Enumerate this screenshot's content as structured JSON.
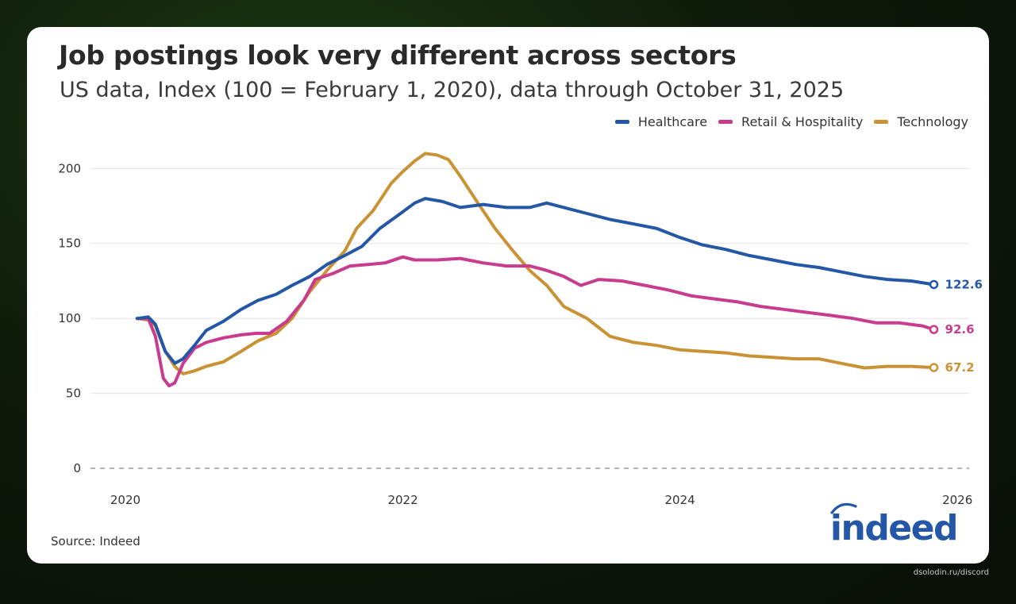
{
  "title": "Job postings look very different across sectors",
  "subtitle": "US data, Index (100 = February 1, 2020), data through October 31, 2025",
  "source": "Source: Indeed",
  "logo_text": "indeed",
  "watermark": "dsolodin.ru/discord",
  "colors": {
    "healthcare": "#2557a7",
    "retail": "#c93b8d",
    "technology": "#c99235",
    "grid": "#e3e3e3",
    "zero_line": "#888888",
    "background": "#ffffff"
  },
  "chart_data": {
    "type": "line",
    "title": "Job postings look very different across sectors",
    "subtitle": "US data, Index (100 = February 1, 2020), data through October 31, 2025",
    "xlabel": "",
    "ylabel": "",
    "x_ticks": [
      "2020",
      "2022",
      "2024",
      "2026"
    ],
    "y_ticks": [
      0,
      50,
      100,
      150,
      200
    ],
    "xlim": [
      "2019-10-01",
      "2026-02-01"
    ],
    "ylim": [
      0,
      215
    ],
    "grid": true,
    "legend_position": "top-right",
    "series": [
      {
        "name": "Healthcare",
        "color": "#2557a7",
        "end_label": "122.6",
        "points": [
          [
            "2020-02-01",
            100
          ],
          [
            "2020-03-01",
            101
          ],
          [
            "2020-03-20",
            96
          ],
          [
            "2020-04-15",
            78
          ],
          [
            "2020-05-10",
            70
          ],
          [
            "2020-06-01",
            73
          ],
          [
            "2020-07-01",
            82
          ],
          [
            "2020-08-01",
            92
          ],
          [
            "2020-09-15",
            98
          ],
          [
            "2020-11-01",
            106
          ],
          [
            "2020-12-15",
            112
          ],
          [
            "2021-02-01",
            116
          ],
          [
            "2021-03-15",
            122
          ],
          [
            "2021-05-01",
            128
          ],
          [
            "2021-06-15",
            136
          ],
          [
            "2021-08-01",
            142
          ],
          [
            "2021-09-15",
            148
          ],
          [
            "2021-11-01",
            160
          ],
          [
            "2021-12-15",
            168
          ],
          [
            "2022-02-01",
            177
          ],
          [
            "2022-03-01",
            180
          ],
          [
            "2022-04-15",
            178
          ],
          [
            "2022-06-01",
            174
          ],
          [
            "2022-08-01",
            176
          ],
          [
            "2022-10-01",
            174
          ],
          [
            "2022-12-01",
            174
          ],
          [
            "2023-01-15",
            177
          ],
          [
            "2023-03-01",
            174
          ],
          [
            "2023-05-01",
            170
          ],
          [
            "2023-07-01",
            166
          ],
          [
            "2023-09-01",
            163
          ],
          [
            "2023-11-01",
            160
          ],
          [
            "2024-01-01",
            154
          ],
          [
            "2024-03-01",
            149
          ],
          [
            "2024-05-01",
            146
          ],
          [
            "2024-07-01",
            142
          ],
          [
            "2024-09-01",
            139
          ],
          [
            "2024-11-01",
            136
          ],
          [
            "2025-01-01",
            134
          ],
          [
            "2025-03-01",
            131
          ],
          [
            "2025-05-01",
            128
          ],
          [
            "2025-07-01",
            126
          ],
          [
            "2025-09-01",
            125
          ],
          [
            "2025-10-31",
            122.6
          ]
        ]
      },
      {
        "name": "Retail & Hospitality",
        "color": "#c93b8d",
        "end_label": "92.6",
        "points": [
          [
            "2020-02-01",
            100
          ],
          [
            "2020-03-01",
            100
          ],
          [
            "2020-03-20",
            88
          ],
          [
            "2020-04-10",
            60
          ],
          [
            "2020-04-25",
            55
          ],
          [
            "2020-05-10",
            57
          ],
          [
            "2020-06-01",
            70
          ],
          [
            "2020-07-01",
            80
          ],
          [
            "2020-08-01",
            84
          ],
          [
            "2020-09-15",
            87
          ],
          [
            "2020-11-01",
            89
          ],
          [
            "2020-12-10",
            90
          ],
          [
            "2021-01-15",
            90
          ],
          [
            "2021-03-01",
            98
          ],
          [
            "2021-04-15",
            112
          ],
          [
            "2021-05-15",
            126
          ],
          [
            "2021-07-01",
            130
          ],
          [
            "2021-08-15",
            135
          ],
          [
            "2021-10-01",
            136
          ],
          [
            "2021-11-15",
            137
          ],
          [
            "2022-01-01",
            141
          ],
          [
            "2022-02-01",
            139
          ],
          [
            "2022-04-01",
            139
          ],
          [
            "2022-06-01",
            140
          ],
          [
            "2022-08-01",
            137
          ],
          [
            "2022-10-01",
            135
          ],
          [
            "2022-12-01",
            135
          ],
          [
            "2023-01-15",
            132
          ],
          [
            "2023-03-01",
            128
          ],
          [
            "2023-04-15",
            122
          ],
          [
            "2023-06-01",
            126
          ],
          [
            "2023-08-01",
            125
          ],
          [
            "2023-10-01",
            122
          ],
          [
            "2023-12-01",
            119
          ],
          [
            "2024-02-01",
            115
          ],
          [
            "2024-04-01",
            113
          ],
          [
            "2024-06-01",
            111
          ],
          [
            "2024-08-01",
            108
          ],
          [
            "2024-10-01",
            106
          ],
          [
            "2024-12-01",
            104
          ],
          [
            "2025-02-01",
            102
          ],
          [
            "2025-04-01",
            100
          ],
          [
            "2025-06-01",
            97
          ],
          [
            "2025-08-01",
            97
          ],
          [
            "2025-10-01",
            95
          ],
          [
            "2025-10-31",
            92.6
          ]
        ]
      },
      {
        "name": "Technology",
        "color": "#c99235",
        "end_label": "67.2",
        "points": [
          [
            "2020-02-01",
            100
          ],
          [
            "2020-03-01",
            99
          ],
          [
            "2020-03-20",
            95
          ],
          [
            "2020-04-15",
            78
          ],
          [
            "2020-05-10",
            68
          ],
          [
            "2020-06-01",
            63
          ],
          [
            "2020-07-01",
            65
          ],
          [
            "2020-08-01",
            68
          ],
          [
            "2020-09-15",
            71
          ],
          [
            "2020-11-01",
            78
          ],
          [
            "2020-12-15",
            85
          ],
          [
            "2021-02-01",
            90
          ],
          [
            "2021-03-15",
            100
          ],
          [
            "2021-05-01",
            118
          ],
          [
            "2021-06-15",
            132
          ],
          [
            "2021-08-01",
            145
          ],
          [
            "2021-09-01",
            160
          ],
          [
            "2021-10-15",
            172
          ],
          [
            "2021-12-01",
            190
          ],
          [
            "2022-01-01",
            198
          ],
          [
            "2022-02-01",
            205
          ],
          [
            "2022-03-01",
            210
          ],
          [
            "2022-04-01",
            209
          ],
          [
            "2022-05-01",
            206
          ],
          [
            "2022-06-01",
            195
          ],
          [
            "2022-07-15",
            178
          ],
          [
            "2022-09-01",
            160
          ],
          [
            "2022-10-15",
            146
          ],
          [
            "2022-12-01",
            132
          ],
          [
            "2023-01-15",
            122
          ],
          [
            "2023-03-01",
            108
          ],
          [
            "2023-05-01",
            100
          ],
          [
            "2023-07-01",
            88
          ],
          [
            "2023-09-01",
            84
          ],
          [
            "2023-11-01",
            82
          ],
          [
            "2024-01-01",
            79
          ],
          [
            "2024-03-01",
            78
          ],
          [
            "2024-05-01",
            77
          ],
          [
            "2024-07-01",
            75
          ],
          [
            "2024-09-01",
            74
          ],
          [
            "2024-11-01",
            73
          ],
          [
            "2025-01-01",
            73
          ],
          [
            "2025-03-01",
            70
          ],
          [
            "2025-05-01",
            67
          ],
          [
            "2025-07-01",
            68
          ],
          [
            "2025-09-01",
            68
          ],
          [
            "2025-10-31",
            67.2
          ]
        ]
      }
    ]
  }
}
